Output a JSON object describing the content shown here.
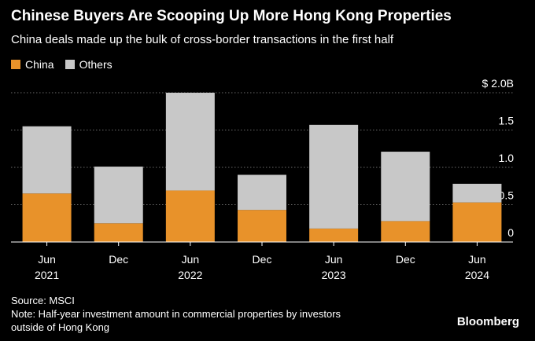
{
  "header": {
    "title": "Chinese Buyers Are Scooping Up More Hong Kong Properties",
    "subtitle": "China deals made up the bulk of cross-border transactions in the first half"
  },
  "legend": {
    "items": [
      {
        "label": "China",
        "color": "#E8922A"
      },
      {
        "label": "Others",
        "color": "#C8C8C8"
      }
    ]
  },
  "footer": {
    "source": "Source: MSCI",
    "note_line1": "Note: Half-year investment amount in commercial properties by investors",
    "note_line2": "outside of Hong Kong"
  },
  "brand": {
    "logo": "Bloomberg"
  },
  "chart_data": {
    "type": "bar",
    "stacked": true,
    "categories": [
      "Jun 2021",
      "Dec 2021",
      "Jun 2022",
      "Dec 2022",
      "Jun 2023",
      "Dec 2023",
      "Jun 2024"
    ],
    "x_tick_labels": [
      {
        "line1": "Jun",
        "line2": "2021"
      },
      {
        "line1": "Dec",
        "line2": ""
      },
      {
        "line1": "Jun",
        "line2": "2022"
      },
      {
        "line1": "Dec",
        "line2": ""
      },
      {
        "line1": "Jun",
        "line2": "2023"
      },
      {
        "line1": "Dec",
        "line2": ""
      },
      {
        "line1": "Jun",
        "line2": "2024"
      }
    ],
    "series": [
      {
        "name": "China",
        "color": "#E8922A",
        "values": [
          0.65,
          0.25,
          0.69,
          0.43,
          0.18,
          0.28,
          0.53
        ]
      },
      {
        "name": "Others",
        "color": "#C8C8C8",
        "values": [
          0.9,
          0.76,
          1.31,
          0.47,
          1.39,
          0.93,
          0.25
        ]
      }
    ],
    "ylim": [
      0,
      2.0
    ],
    "y_ticks": [
      {
        "value": 0,
        "label": "0"
      },
      {
        "value": 0.5,
        "label": "0.5"
      },
      {
        "value": 1.0,
        "label": "1.0"
      },
      {
        "value": 1.5,
        "label": "1.5"
      },
      {
        "value": 2.0,
        "label": "$ 2.0B"
      }
    ],
    "y_axis_position": "right",
    "grid": true
  }
}
